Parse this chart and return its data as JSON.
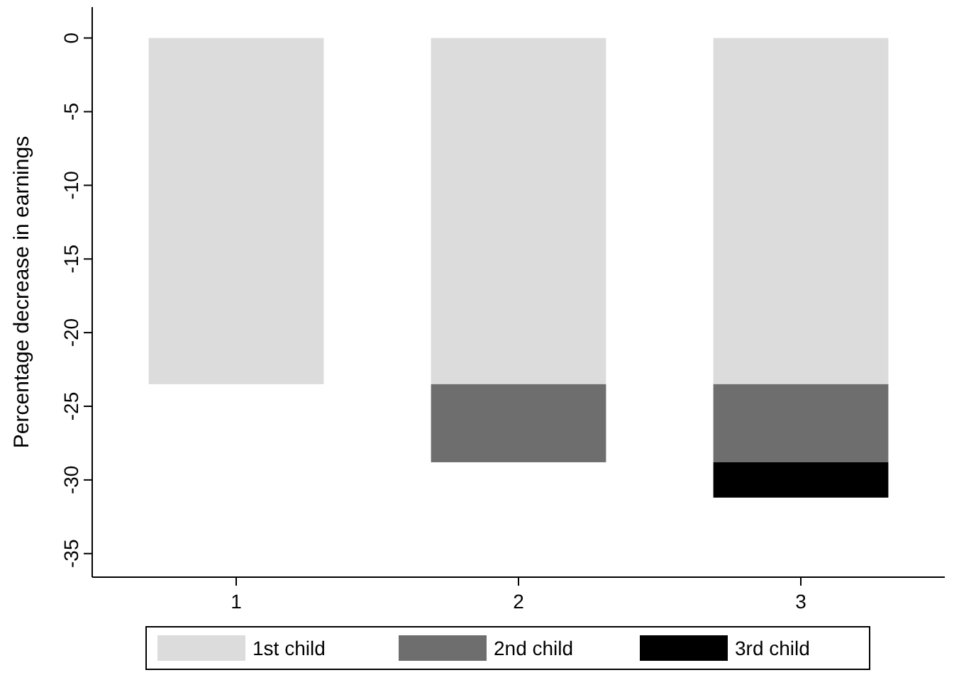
{
  "chart_data": {
    "type": "bar",
    "stacked": true,
    "ylabel": "Percentage decrease in earnings",
    "categories": [
      "1",
      "2",
      "3"
    ],
    "series": [
      {
        "name": "1st child",
        "color": "#dcdcdc",
        "values": [
          -23.5,
          -23.5,
          -23.5
        ]
      },
      {
        "name": "2nd child",
        "color": "#6e6e6e",
        "values": [
          null,
          -5.3,
          -5.3
        ]
      },
      {
        "name": "3rd child",
        "color": "#000000",
        "values": [
          null,
          null,
          -2.4
        ]
      }
    ],
    "ylim": [
      -36.6,
      2.1
    ],
    "yticks": [
      0,
      -5,
      -10,
      -15,
      -20,
      -25,
      -30,
      -35
    ],
    "grid": false,
    "legend": "bottom"
  }
}
